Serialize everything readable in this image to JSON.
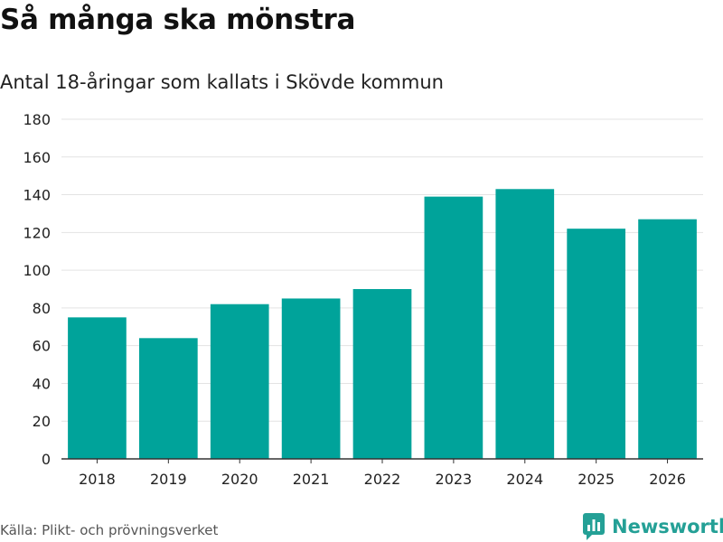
{
  "chart_data": {
    "type": "bar",
    "title": "Så många ska mönstra",
    "subtitle": "Antal 18-åringar som kallats i Skövde kommun",
    "categories": [
      "2018",
      "2019",
      "2020",
      "2021",
      "2022",
      "2023",
      "2024",
      "2025",
      "2026"
    ],
    "values": [
      75,
      64,
      82,
      85,
      90,
      139,
      143,
      122,
      127
    ],
    "xlabel": "",
    "ylabel": "",
    "ylim": [
      0,
      180
    ],
    "yticks": [
      0,
      20,
      40,
      60,
      80,
      100,
      120,
      140,
      160,
      180
    ],
    "grid": true,
    "bar_color": "#00a39a"
  },
  "footer": {
    "source": "Källa: Plikt- och prövningsverket",
    "brand": "Newsworthy",
    "brand_color": "#24a096",
    "brand_icon": "bar-chart-logo-icon"
  }
}
